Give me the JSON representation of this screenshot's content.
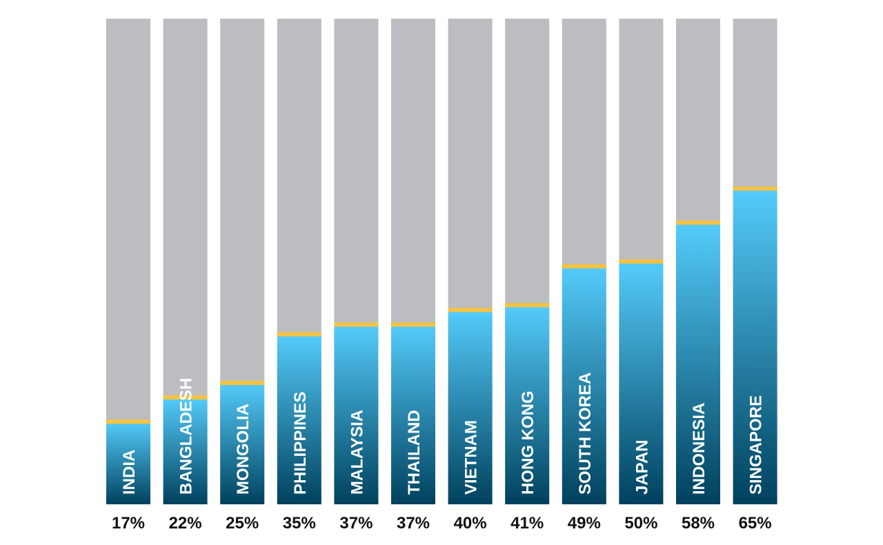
{
  "chart_data": {
    "type": "bar",
    "title": "",
    "xlabel": "",
    "ylabel": "",
    "ylim": [
      0,
      100
    ],
    "grid": false,
    "categories": [
      "INDIA",
      "BANGLADESH",
      "MONGOLIA",
      "PHILIPPINES",
      "MALAYSIA",
      "THAILAND",
      "VIETNAM",
      "HONG KONG",
      "SOUTH KOREA",
      "JAPAN",
      "INDONESIA",
      "SINGAPORE"
    ],
    "values": [
      17,
      22,
      25,
      35,
      37,
      37,
      40,
      41,
      49,
      50,
      58,
      65
    ],
    "value_labels": [
      "17%",
      "22%",
      "25%",
      "35%",
      "37%",
      "37%",
      "40%",
      "41%",
      "49%",
      "50%",
      "58%",
      "65%"
    ]
  },
  "colors": {
    "track": "#bcbdc0",
    "bar_top": "#55ccfb",
    "bar_bottom": "#00415d",
    "cap": "#f5c242",
    "category_text": "#ffffff",
    "value_text": "#111111"
  }
}
